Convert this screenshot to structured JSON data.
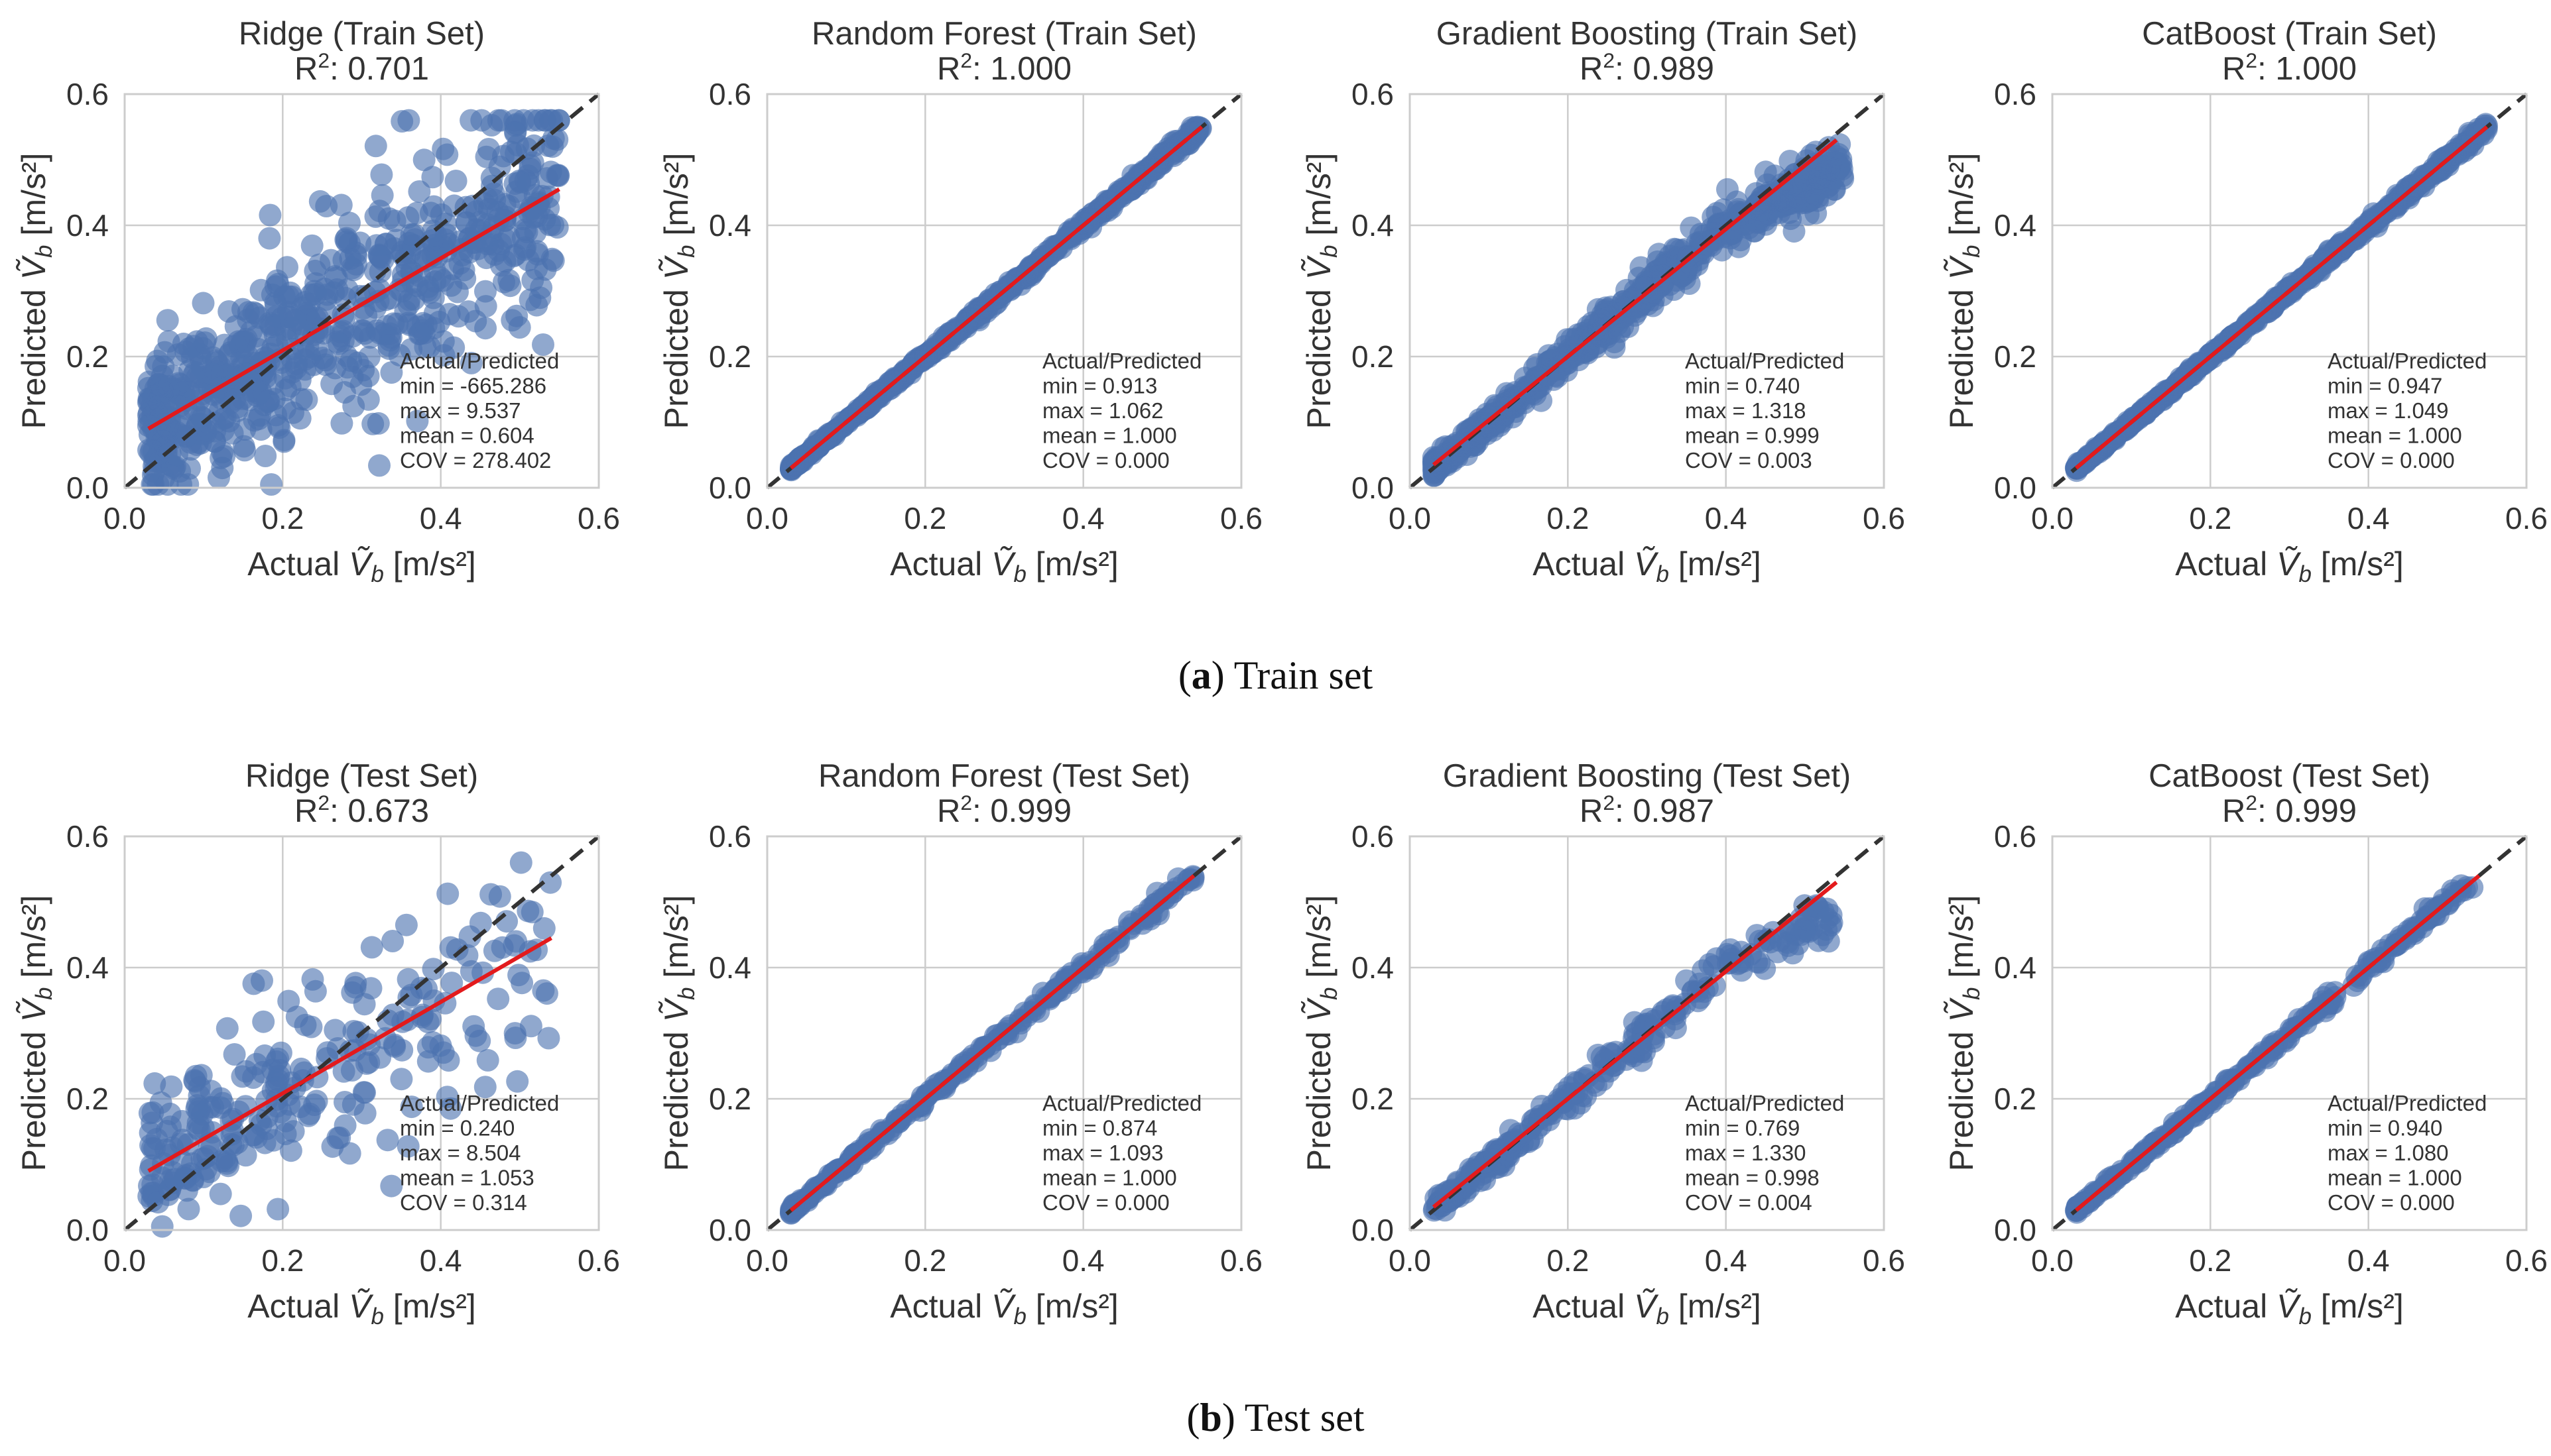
{
  "captions": {
    "a_letter": "a",
    "a_text": "Train set",
    "b_letter": "b",
    "b_text": "Test set"
  },
  "colors": {
    "points": "#4c72b0",
    "fit_line": "#e31a1c",
    "identity_line": "#333333",
    "grid": "#cccccc"
  },
  "chart_data": [
    {
      "type": "scatter",
      "title": "Ridge (Train Set)",
      "subtitle": "R²: 0.701",
      "xlabel": "Actual Ṽb [m/s²]",
      "ylabel": "Predicted Ṽb [m/s²]",
      "xlim": [
        0,
        0.6
      ],
      "ylim": [
        0,
        0.6
      ],
      "xticks": [
        "0.0",
        "0.2",
        "0.4",
        "0.6"
      ],
      "yticks": [
        "0.0",
        "0.2",
        "0.4",
        "0.6"
      ],
      "fit_line": [
        [
          0.03,
          0.09
        ],
        [
          0.55,
          0.455
        ]
      ],
      "spread": 0.09,
      "stats": [
        "Actual/Predicted",
        "min = -665.286",
        "max = 9.537",
        "mean = 0.604",
        "COV = 278.402"
      ]
    },
    {
      "type": "scatter",
      "title": "Random Forest (Train Set)",
      "subtitle": "R²: 1.000",
      "xlabel": "Actual Ṽb [m/s²]",
      "ylabel": "Predicted Ṽb [m/s²]",
      "xlim": [
        0,
        0.6
      ],
      "ylim": [
        0,
        0.6
      ],
      "xticks": [
        "0.0",
        "0.2",
        "0.4",
        "0.6"
      ],
      "yticks": [
        "0.0",
        "0.2",
        "0.4",
        "0.6"
      ],
      "fit_line": [
        [
          0.03,
          0.03
        ],
        [
          0.55,
          0.55
        ]
      ],
      "spread": 0.003,
      "stats": [
        "Actual/Predicted",
        "min = 0.913",
        "max = 1.062",
        "mean = 1.000",
        "COV = 0.000"
      ]
    },
    {
      "type": "scatter",
      "title": "Gradient Boosting (Train Set)",
      "subtitle": "R²: 0.989",
      "xlabel": "Actual Ṽb [m/s²]",
      "ylabel": "Predicted Ṽb [m/s²]",
      "xlim": [
        0,
        0.6
      ],
      "ylim": [
        0,
        0.6
      ],
      "xticks": [
        "0.0",
        "0.2",
        "0.4",
        "0.6"
      ],
      "yticks": [
        "0.0",
        "0.2",
        "0.4",
        "0.6"
      ],
      "fit_line": [
        [
          0.03,
          0.035
        ],
        [
          0.54,
          0.53
        ]
      ],
      "spread": 0.012,
      "stats": [
        "Actual/Predicted",
        "min = 0.740",
        "max = 1.318",
        "mean = 0.999",
        "COV = 0.003"
      ]
    },
    {
      "type": "scatter",
      "title": "CatBoost (Train Set)",
      "subtitle": "R²: 1.000",
      "xlabel": "Actual Ṽb [m/s²]",
      "ylabel": "Predicted Ṽb [m/s²]",
      "xlim": [
        0,
        0.6
      ],
      "ylim": [
        0,
        0.6
      ],
      "xticks": [
        "0.0",
        "0.2",
        "0.4",
        "0.6"
      ],
      "yticks": [
        "0.0",
        "0.2",
        "0.4",
        "0.6"
      ],
      "fit_line": [
        [
          0.03,
          0.03
        ],
        [
          0.55,
          0.55
        ]
      ],
      "spread": 0.003,
      "stats": [
        "Actual/Predicted",
        "min = 0.947",
        "max = 1.049",
        "mean = 1.000",
        "COV = 0.000"
      ]
    },
    {
      "type": "scatter",
      "title": "Ridge (Test Set)",
      "subtitle": "R²: 0.673",
      "xlabel": "Actual Ṽb [m/s²]",
      "ylabel": "Predicted Ṽb [m/s²]",
      "xlim": [
        0,
        0.6
      ],
      "ylim": [
        0,
        0.6
      ],
      "xticks": [
        "0.0",
        "0.2",
        "0.4",
        "0.6"
      ],
      "yticks": [
        "0.0",
        "0.2",
        "0.4",
        "0.6"
      ],
      "fit_line": [
        [
          0.03,
          0.09
        ],
        [
          0.54,
          0.445
        ]
      ],
      "spread": 0.08,
      "stats": [
        "Actual/Predicted",
        "min = 0.240",
        "max = 8.504",
        "mean = 1.053",
        "COV = 0.314"
      ]
    },
    {
      "type": "scatter",
      "title": "Random Forest (Test Set)",
      "subtitle": "R²: 0.999",
      "xlabel": "Actual Ṽb [m/s²]",
      "ylabel": "Predicted Ṽb [m/s²]",
      "xlim": [
        0,
        0.6
      ],
      "ylim": [
        0,
        0.6
      ],
      "xticks": [
        "0.0",
        "0.2",
        "0.4",
        "0.6"
      ],
      "yticks": [
        "0.0",
        "0.2",
        "0.4",
        "0.6"
      ],
      "fit_line": [
        [
          0.03,
          0.03
        ],
        [
          0.54,
          0.54
        ]
      ],
      "spread": 0.004,
      "stats": [
        "Actual/Predicted",
        "min = 0.874",
        "max = 1.093",
        "mean = 1.000",
        "COV = 0.000"
      ]
    },
    {
      "type": "scatter",
      "title": "Gradient Boosting (Test Set)",
      "subtitle": "R²: 0.987",
      "xlabel": "Actual Ṽb [m/s²]",
      "ylabel": "Predicted Ṽb [m/s²]",
      "xlim": [
        0,
        0.6
      ],
      "ylim": [
        0,
        0.6
      ],
      "xticks": [
        "0.0",
        "0.2",
        "0.4",
        "0.6"
      ],
      "yticks": [
        "0.0",
        "0.2",
        "0.4",
        "0.6"
      ],
      "fit_line": [
        [
          0.03,
          0.035
        ],
        [
          0.54,
          0.53
        ]
      ],
      "spread": 0.012,
      "stats": [
        "Actual/Predicted",
        "min = 0.769",
        "max = 1.330",
        "mean = 0.998",
        "COV = 0.004"
      ]
    },
    {
      "type": "scatter",
      "title": "CatBoost (Test Set)",
      "subtitle": "R²: 0.999",
      "xlabel": "Actual Ṽb [m/s²]",
      "ylabel": "Predicted Ṽb [m/s²]",
      "xlim": [
        0,
        0.6
      ],
      "ylim": [
        0,
        0.6
      ],
      "xticks": [
        "0.0",
        "0.2",
        "0.4",
        "0.6"
      ],
      "yticks": [
        "0.0",
        "0.2",
        "0.4",
        "0.6"
      ],
      "fit_line": [
        [
          0.03,
          0.03
        ],
        [
          0.54,
          0.54
        ]
      ],
      "spread": 0.004,
      "stats": [
        "Actual/Predicted",
        "min = 0.940",
        "max = 1.080",
        "mean = 1.000",
        "COV = 0.000"
      ]
    }
  ]
}
